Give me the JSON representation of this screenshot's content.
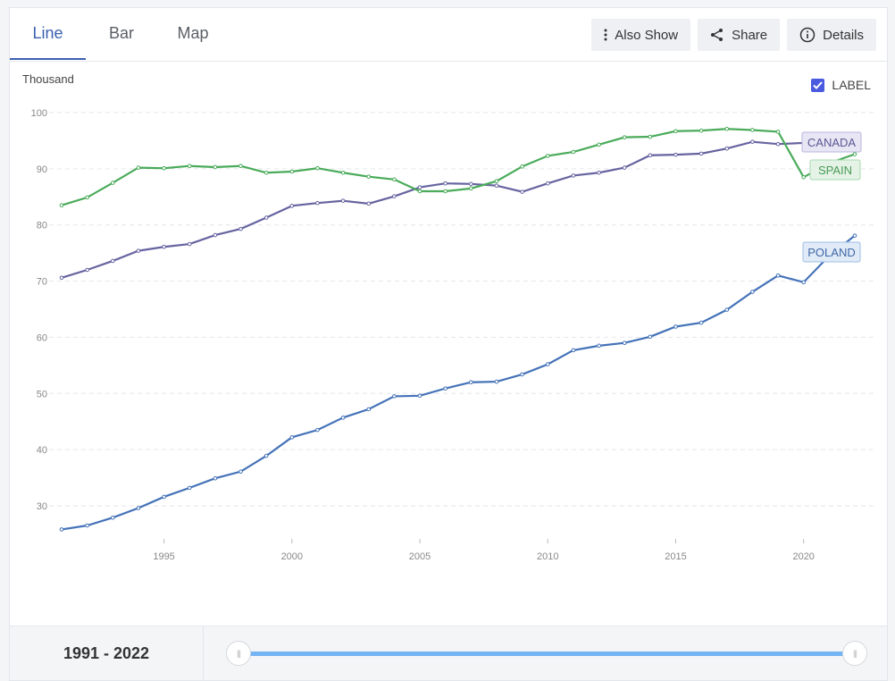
{
  "tabs": [
    {
      "label": "Line"
    },
    {
      "label": "Bar"
    },
    {
      "label": "Map"
    }
  ],
  "toolbar": {
    "also_show": "Also Show",
    "share": "Share",
    "details": "Details"
  },
  "label_toggle": {
    "text": "LABEL",
    "checked": true
  },
  "range": {
    "start": "1991",
    "sep": " - ",
    "end": "2022"
  },
  "colors": {
    "canada": "#6664a0",
    "spain": "#4aab5a",
    "poland": "#4472b8"
  },
  "chart_data": {
    "type": "line",
    "ylabel": "Thousand",
    "xlim": [
      1991,
      2022
    ],
    "ylim": [
      24,
      101
    ],
    "yticks": [
      30,
      40,
      50,
      60,
      70,
      80,
      90,
      100
    ],
    "xticks": [
      1995,
      2000,
      2005,
      2010,
      2015,
      2020
    ],
    "grid": true,
    "x": [
      1991,
      1992,
      1993,
      1994,
      1995,
      1996,
      1997,
      1998,
      1999,
      2000,
      2001,
      2002,
      2003,
      2004,
      2005,
      2006,
      2007,
      2008,
      2009,
      2010,
      2011,
      2012,
      2013,
      2014,
      2015,
      2016,
      2017,
      2018,
      2019,
      2020,
      2021,
      2022
    ],
    "series": [
      {
        "name": "CANADA",
        "key": "canada",
        "values": [
          70.6,
          72.0,
          73.6,
          75.4,
          76.1,
          76.6,
          78.2,
          79.3,
          81.3,
          83.4,
          83.9,
          84.3,
          83.8,
          85.1,
          86.7,
          87.4,
          87.3,
          87.0,
          85.9,
          87.4,
          88.8,
          89.3,
          90.2,
          92.4,
          92.5,
          92.7,
          93.6,
          94.8,
          94.4,
          94.6,
          null,
          null
        ]
      },
      {
        "name": "SPAIN",
        "key": "spain",
        "values": [
          83.5,
          84.9,
          87.5,
          90.2,
          90.1,
          90.5,
          90.3,
          90.5,
          89.3,
          89.5,
          90.1,
          89.3,
          88.6,
          88.1,
          86.0,
          86.0,
          86.5,
          87.8,
          90.4,
          92.3,
          93.0,
          94.3,
          95.6,
          95.7,
          96.7,
          96.8,
          97.1,
          96.9,
          96.6,
          88.5,
          91.0,
          92.6
        ]
      },
      {
        "name": "POLAND",
        "key": "poland",
        "values": [
          25.8,
          26.5,
          27.9,
          29.6,
          31.6,
          33.2,
          34.9,
          36.1,
          38.9,
          42.2,
          43.5,
          45.7,
          47.2,
          49.5,
          49.6,
          50.9,
          52.0,
          52.1,
          53.4,
          55.2,
          57.7,
          58.5,
          59.0,
          60.1,
          61.9,
          62.6,
          64.9,
          68.1,
          71.0,
          69.8,
          74.5,
          78.1
        ]
      }
    ]
  }
}
